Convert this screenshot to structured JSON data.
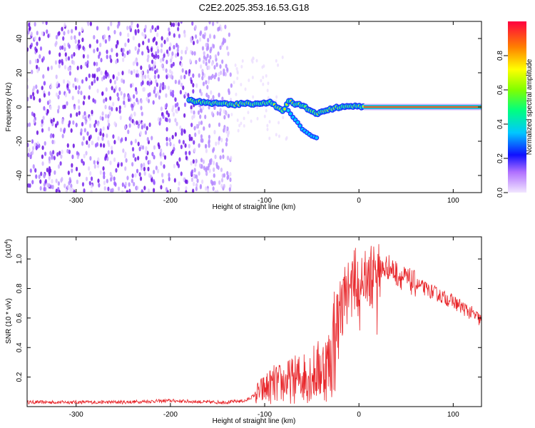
{
  "title": "C2E2.2025.353.16.53.G18",
  "chart_data": [
    {
      "type": "heatmap",
      "name": "spectrogram",
      "xlabel": "Height of straight line (km)",
      "ylabel": "Frequency (Hz)",
      "xlim": [
        -352,
        130
      ],
      "ylim": [
        -50,
        50
      ],
      "xticks": [
        -300,
        -200,
        -100,
        0,
        100
      ],
      "yticks": [
        -40,
        -20,
        0,
        20,
        40
      ],
      "colorbar": {
        "label": "Normalized spectral amplitude",
        "range": [
          0,
          1
        ],
        "ticks": [
          0.0,
          0.2,
          0.4,
          0.6,
          0.8
        ]
      },
      "tracked_signal": {
        "x": [
          -180,
          -170,
          -160,
          -150,
          -140,
          -130,
          -120,
          -110,
          -100,
          -95,
          -90,
          -85,
          -80,
          -75,
          -70,
          -60,
          -50,
          -45,
          -40,
          -30,
          -20,
          -10,
          0,
          5,
          130
        ],
        "y": [
          4,
          3,
          2.5,
          2,
          1.5,
          1.5,
          2,
          2,
          2.5,
          3,
          1,
          -1,
          -3,
          4,
          2,
          1,
          -3,
          -4,
          -3,
          -1,
          0,
          0.5,
          1,
          0,
          0
        ]
      },
      "secondary_branch": {
        "x": [
          -75,
          -70,
          -65,
          -60,
          -55,
          -50,
          -45
        ],
        "y": [
          -2,
          -6,
          -9,
          -13,
          -15,
          -17,
          -18
        ]
      }
    },
    {
      "type": "line",
      "name": "snr",
      "xlabel": "Height of straight line (km)",
      "ylabel": "SNR (10 * v/v)",
      "y_multiplier": "(x10",
      "y_multiplier_exp": "4",
      "xlim": [
        -352,
        130
      ],
      "ylim": [
        0,
        1.15
      ],
      "xticks": [
        -300,
        -200,
        -100,
        0,
        100
      ],
      "yticks": [
        0.2,
        0.4,
        0.6,
        0.8,
        1.0
      ],
      "series": [
        {
          "name": "SNR",
          "color": "#e8262a",
          "x": [
            -352,
            -300,
            -250,
            -200,
            -160,
            -140,
            -120,
            -110,
            -100,
            -90,
            -80,
            -70,
            -60,
            -50,
            -40,
            -30,
            -25,
            -20,
            -15,
            -10,
            -5,
            0,
            5,
            10,
            15,
            20,
            25,
            30,
            35,
            40,
            50,
            60,
            70,
            80,
            90,
            100,
            110,
            120,
            130
          ],
          "y": [
            0.03,
            0.03,
            0.03,
            0.04,
            0.03,
            0.03,
            0.04,
            0.08,
            0.12,
            0.15,
            0.16,
            0.18,
            0.2,
            0.22,
            0.25,
            0.3,
            0.55,
            0.65,
            0.75,
            0.8,
            0.85,
            0.88,
            0.85,
            0.87,
            0.88,
            0.9,
            0.92,
            0.95,
            0.93,
            0.9,
            0.86,
            0.83,
            0.8,
            0.77,
            0.74,
            0.71,
            0.67,
            0.63,
            0.58
          ]
        }
      ]
    }
  ],
  "colors": {
    "signal": "#e8262a",
    "background": "#ffffff"
  }
}
